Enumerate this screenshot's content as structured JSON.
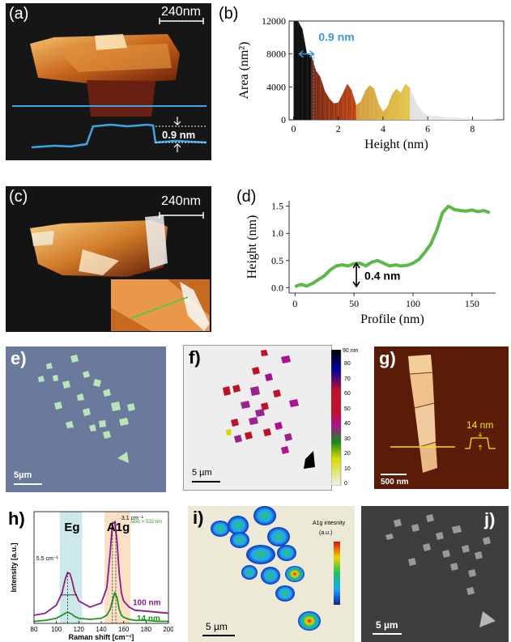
{
  "panels": {
    "a": {
      "label": "(a)",
      "scalebar": "240nm",
      "step": "0.9 nm"
    },
    "b": {
      "label": "(b)"
    },
    "c": {
      "label": "(c)",
      "scalebar": "240nm"
    },
    "d": {
      "label": "(d)"
    },
    "e": {
      "label": "e)",
      "scalebar": "5µm"
    },
    "f": {
      "label": "f)",
      "scalebar": "5 µm",
      "colorbar_unit": "90 nm",
      "colorbar_ticks": [
        "80",
        "70",
        "60",
        "50",
        "40",
        "30",
        "20",
        "10",
        "0"
      ]
    },
    "g": {
      "label": "g)",
      "scalebar": "500 nm",
      "profile_label": "14 nm"
    },
    "h": {
      "label": "h)"
    },
    "i": {
      "label": "i)",
      "scalebar": "5 µm",
      "legend_title": "A1g intesnity",
      "legend_unit": "(a.u.)"
    },
    "j": {
      "label": "j)",
      "scalebar": "5 µm"
    }
  },
  "chart_data": [
    {
      "id": "b",
      "type": "area",
      "xlabel": "Height (nm)",
      "ylabel": "Area (nm²)",
      "xlim": [
        -0.2,
        9.4
      ],
      "ylim": [
        0,
        12000
      ],
      "xticks": [
        "0",
        "2",
        "4",
        "6",
        "8"
      ],
      "yticks": [
        "0",
        "4000",
        "8000",
        "12000"
      ],
      "annotation": "0.9 nm",
      "x": [
        0,
        0.2,
        0.4,
        0.6,
        0.8,
        1.0,
        1.2,
        1.4,
        1.6,
        1.8,
        2.0,
        2.2,
        2.4,
        2.6,
        2.8,
        3.0,
        3.2,
        3.4,
        3.6,
        3.8,
        4.0,
        4.2,
        4.4,
        4.6,
        4.8,
        5.0,
        5.2,
        5.4,
        5.6,
        5.8,
        6.0,
        6.2,
        6.4,
        6.6,
        6.8,
        7.0,
        7.4,
        7.8,
        8.2,
        8.6,
        9.0
      ],
      "y": [
        12000,
        12000,
        11000,
        8000,
        7800,
        6000,
        5200,
        3500,
        2600,
        2000,
        2100,
        3200,
        4400,
        3600,
        1800,
        2200,
        3500,
        4200,
        3800,
        2000,
        1000,
        1600,
        3100,
        3800,
        3300,
        4400,
        3900,
        2600,
        1600,
        900,
        600,
        500,
        500,
        400,
        350,
        300,
        250,
        200,
        150,
        100,
        80
      ]
    },
    {
      "id": "d",
      "type": "line",
      "xlabel": "Profile (nm)",
      "ylabel": "Height (nm)",
      "xlim": [
        -5,
        170
      ],
      "ylim": [
        -0.1,
        1.6
      ],
      "xticks": [
        "0",
        "50",
        "100",
        "150"
      ],
      "yticks": [
        "0.0",
        "0.5",
        "1.0",
        "1.5"
      ],
      "annotation": "0.4 nm",
      "x": [
        0,
        5,
        10,
        15,
        20,
        25,
        30,
        35,
        40,
        45,
        50,
        55,
        60,
        65,
        70,
        75,
        80,
        85,
        90,
        95,
        100,
        105,
        110,
        115,
        120,
        125,
        130,
        135,
        140,
        145,
        150,
        155,
        160,
        165
      ],
      "y": [
        0.02,
        0.06,
        0.03,
        0.08,
        0.15,
        0.22,
        0.33,
        0.4,
        0.42,
        0.4,
        0.44,
        0.45,
        0.4,
        0.47,
        0.5,
        0.45,
        0.4,
        0.42,
        0.4,
        0.41,
        0.45,
        0.52,
        0.65,
        0.8,
        1.05,
        1.38,
        1.5,
        1.44,
        1.42,
        1.41,
        1.43,
        1.4,
        1.42,
        1.38
      ]
    },
    {
      "id": "h",
      "type": "line",
      "xlabel": "Raman shift [cm⁻¹]",
      "ylabel": "Intensity [a.u.]",
      "xlim": [
        80,
        200
      ],
      "xticks": [
        "80",
        "100",
        "120",
        "140",
        "160",
        "180",
        "200"
      ],
      "band_labels": [
        "Eg",
        "A1g"
      ],
      "laser": "λexc = 532 nm",
      "annotations": [
        "5.5 cm⁻¹",
        "3.1 cm⁻¹"
      ],
      "series": [
        {
          "name": "100 nm",
          "color": "#8b1a8b",
          "x": [
            80,
            90,
            100,
            105,
            108,
            110,
            112,
            114,
            116,
            120,
            130,
            140,
            145,
            148,
            150,
            152,
            154,
            156,
            158,
            160,
            165,
            170,
            180,
            190,
            200
          ],
          "y": [
            0.08,
            0.1,
            0.18,
            0.3,
            0.44,
            0.5,
            0.49,
            0.42,
            0.32,
            0.22,
            0.16,
            0.2,
            0.35,
            0.7,
            0.98,
            1.0,
            0.82,
            0.5,
            0.3,
            0.22,
            0.16,
            0.13,
            0.12,
            0.11,
            0.1
          ]
        },
        {
          "name": "14 nm",
          "color": "#1a9a1a",
          "x": [
            80,
            90,
            100,
            105,
            108,
            110,
            112,
            114,
            116,
            120,
            130,
            140,
            145,
            148,
            150,
            152,
            154,
            156,
            158,
            160,
            165,
            170,
            180,
            190,
            200
          ],
          "y": [
            0.02,
            0.03,
            0.05,
            0.08,
            0.1,
            0.11,
            0.1,
            0.09,
            0.07,
            0.05,
            0.04,
            0.05,
            0.08,
            0.14,
            0.22,
            0.3,
            0.26,
            0.14,
            0.08,
            0.06,
            0.04,
            0.03,
            0.03,
            0.02,
            0.02
          ]
        }
      ]
    }
  ]
}
